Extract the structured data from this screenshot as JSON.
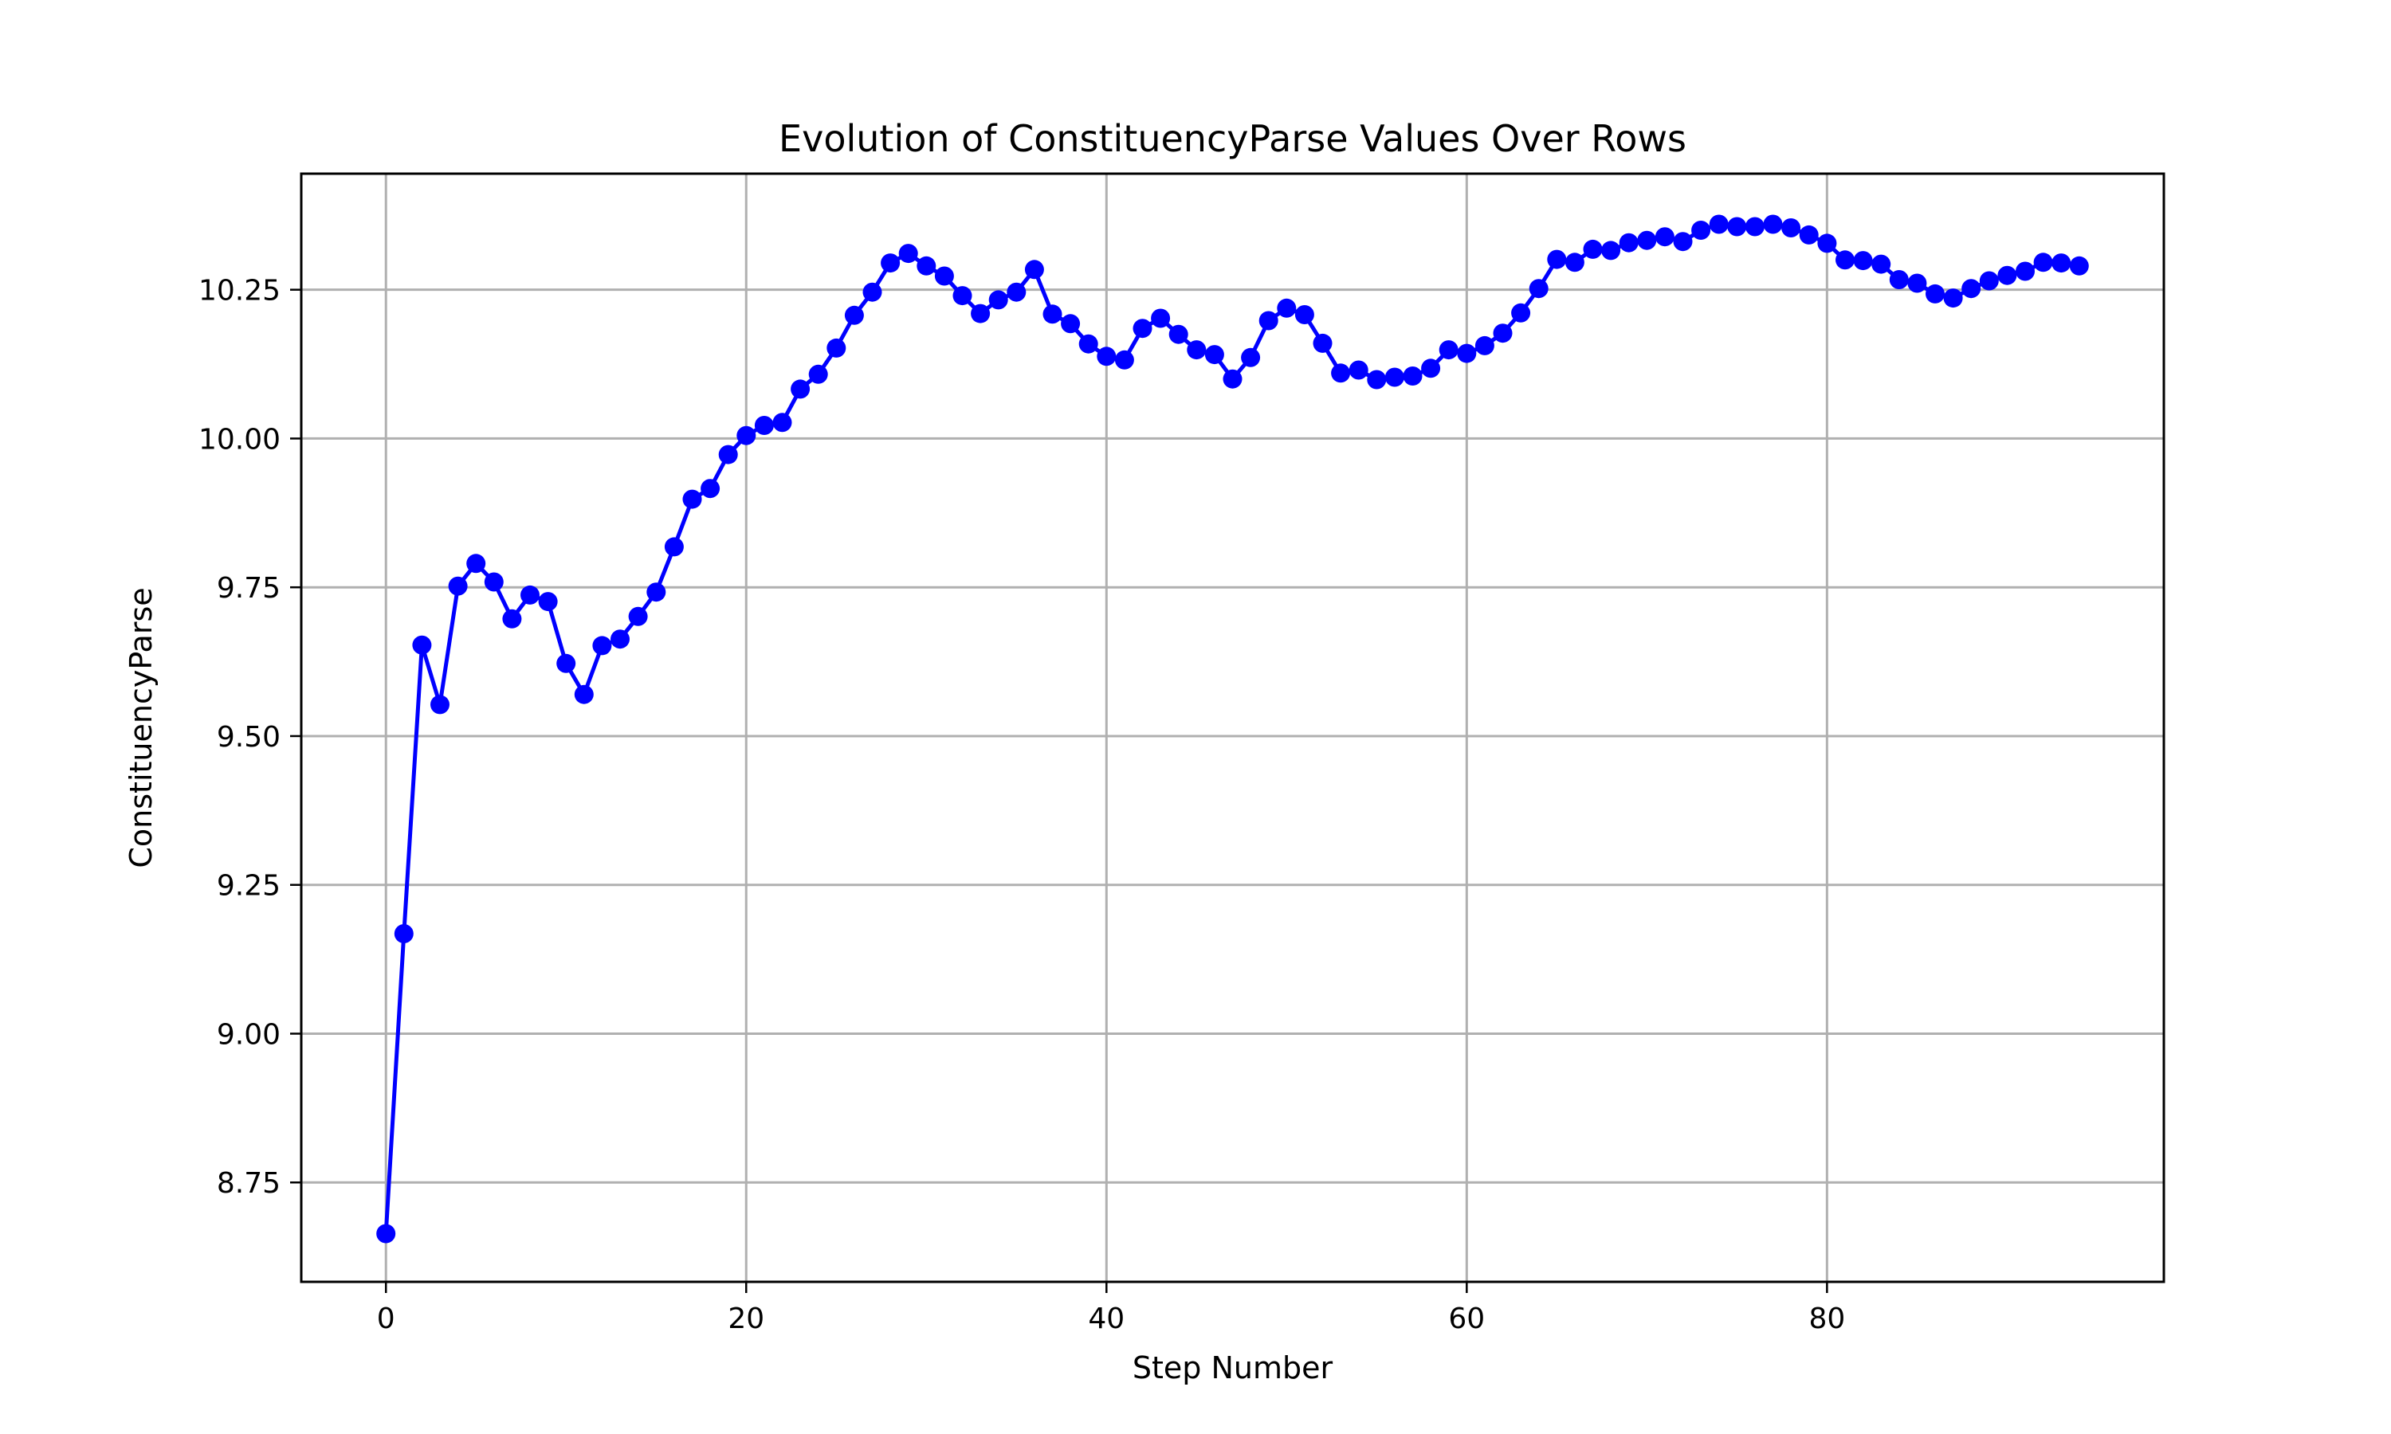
{
  "chart_data": {
    "type": "line",
    "title": "Evolution of ConstituencyParse Values Over Rows",
    "xlabel": "Step Number",
    "ylabel": "ConstituencyParse",
    "xlim": [
      -4.7,
      98.7
    ],
    "ylim": [
      8.583,
      10.445
    ],
    "xticks": [
      0,
      20,
      40,
      60,
      80
    ],
    "yticks": [
      8.75,
      9.0,
      9.25,
      9.5,
      9.75,
      10.0,
      10.25
    ],
    "ytick_labels": [
      "8.75",
      "9.00",
      "9.25",
      "9.50",
      "9.75",
      "10.00",
      "10.25"
    ],
    "grid": true,
    "marker": "circle",
    "color": "#0000ff",
    "series": [
      {
        "x": [
          0,
          1,
          2,
          3,
          4,
          5,
          6,
          7,
          8,
          9,
          10,
          11,
          12,
          13,
          14,
          15,
          16,
          17,
          18,
          19,
          20,
          21,
          22,
          23,
          24,
          25,
          26,
          27,
          28,
          29,
          30,
          31,
          32,
          33,
          34,
          35,
          36,
          37,
          38,
          39,
          40,
          41,
          42,
          43,
          44,
          45,
          46,
          47,
          48,
          49,
          50,
          51,
          52,
          53,
          54,
          55,
          56,
          57,
          58,
          59,
          60,
          61,
          62,
          63,
          64,
          65,
          66,
          67,
          68,
          69,
          70,
          71,
          72,
          73,
          74,
          75,
          76,
          77,
          78,
          79,
          80,
          81,
          82,
          83,
          84,
          85,
          86,
          87,
          88,
          89,
          90,
          91,
          92,
          93,
          94
        ],
        "values": [
          8.664,
          9.168,
          9.653,
          9.553,
          9.752,
          9.79,
          9.759,
          9.697,
          9.737,
          9.726,
          9.622,
          9.57,
          9.652,
          9.663,
          9.701,
          9.742,
          9.818,
          9.898,
          9.916,
          9.973,
          10.005,
          10.022,
          10.027,
          10.083,
          10.108,
          10.152,
          10.207,
          10.246,
          10.295,
          10.311,
          10.29,
          10.273,
          10.24,
          10.21,
          10.233,
          10.246,
          10.284,
          10.209,
          10.193,
          10.159,
          10.138,
          10.132,
          10.185,
          10.202,
          10.175,
          10.149,
          10.141,
          10.1,
          10.136,
          10.198,
          10.219,
          10.208,
          10.16,
          10.11,
          10.115,
          10.099,
          10.103,
          10.105,
          10.118,
          10.149,
          10.143,
          10.156,
          10.177,
          10.211,
          10.252,
          10.301,
          10.296,
          10.318,
          10.316,
          10.329,
          10.333,
          10.339,
          10.331,
          10.35,
          10.36,
          10.356,
          10.356,
          10.36,
          10.354,
          10.342,
          10.328,
          10.3,
          10.299,
          10.293,
          10.267,
          10.261,
          10.243,
          10.236,
          10.252,
          10.265,
          10.274,
          10.281,
          10.296,
          10.295,
          10.29
        ]
      }
    ]
  }
}
